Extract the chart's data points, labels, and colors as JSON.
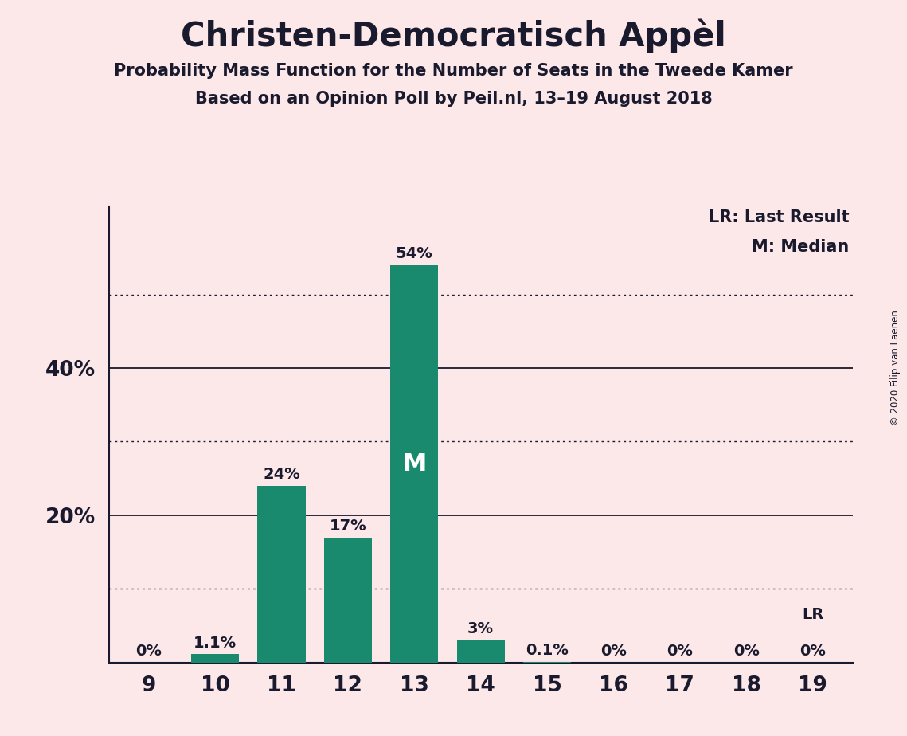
{
  "title": "Christen-Democratisch Appèl",
  "subtitle1": "Probability Mass Function for the Number of Seats in the Tweede Kamer",
  "subtitle2": "Based on an Opinion Poll by Peil.nl, 13–19 August 2018",
  "copyright": "© 2020 Filip van Laenen",
  "categories": [
    9,
    10,
    11,
    12,
    13,
    14,
    15,
    16,
    17,
    18,
    19
  ],
  "values": [
    0.0,
    1.1,
    24.0,
    17.0,
    54.0,
    3.0,
    0.1,
    0.0,
    0.0,
    0.0,
    0.0
  ],
  "bar_labels": [
    "0%",
    "1.1%",
    "24%",
    "17%",
    "54%",
    "3%",
    "0.1%",
    "0%",
    "0%",
    "0%",
    "0%"
  ],
  "bar_color": "#1a8a6e",
  "median_seat": 13,
  "last_result_seat": 19,
  "background_color": "#fce8e8",
  "text_color": "#1a1a2e",
  "solid_yticks": [
    20,
    40
  ],
  "dotted_yticks": [
    10,
    30,
    50
  ],
  "ylim": [
    0,
    62
  ],
  "legend_lr": "LR: Last Result",
  "legend_m": "M: Median"
}
